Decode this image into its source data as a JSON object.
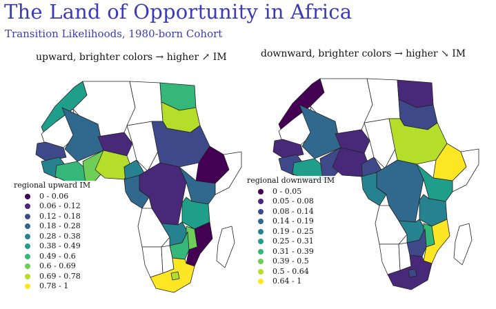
{
  "header": {
    "title": "The Land of Opportunity in Africa",
    "subtitle": "Transition Likelihoods, 1980-born Cohort"
  },
  "maps": {
    "upward": {
      "title": "upward, brighter colors → higher ↗ IM",
      "legend_title": "regional upward IM",
      "legend": [
        {
          "label": "0 - 0.06",
          "color": "#440154"
        },
        {
          "label": "0.06 - 0.12",
          "color": "#482878"
        },
        {
          "label": "0.12 - 0.18",
          "color": "#3e4989"
        },
        {
          "label": "0.18 - 0.28",
          "color": "#31688e"
        },
        {
          "label": "0.28 - 0.38",
          "color": "#26828e"
        },
        {
          "label": "0.38 - 0.49",
          "color": "#1f9e89"
        },
        {
          "label": "0.49 - 0.6",
          "color": "#35b779"
        },
        {
          "label": "0.6 - 0.69",
          "color": "#6ece58"
        },
        {
          "label": "0.69 - 0.78",
          "color": "#b5de2b"
        },
        {
          "label": "0.78 - 1",
          "color": "#fde725"
        }
      ]
    },
    "downward": {
      "title": "downward, brighter colors → higher ↘ IM",
      "legend_title": "regional downward IM",
      "legend": [
        {
          "label": "0 - 0.05",
          "color": "#440154"
        },
        {
          "label": "0.05 - 0.08",
          "color": "#482878"
        },
        {
          "label": "0.08 - 0.14",
          "color": "#3e4989"
        },
        {
          "label": "0.14 - 0.19",
          "color": "#31688e"
        },
        {
          "label": "0.19 - 0.25",
          "color": "#26828e"
        },
        {
          "label": "0.25 - 0.31",
          "color": "#1f9e89"
        },
        {
          "label": "0.31 - 0.39",
          "color": "#35b779"
        },
        {
          "label": "0.39 - 0.5",
          "color": "#6ece58"
        },
        {
          "label": "0.5 - 0.64",
          "color": "#b5de2b"
        },
        {
          "label": "0.64 - 1",
          "color": "#fde725"
        }
      ]
    }
  },
  "regions": {
    "upward": {
      "morocco": "#1f9e89",
      "algeria": "#ffffff",
      "mali": "#31688e",
      "niger": "#482878",
      "mauritania": "#ffffff",
      "senegal": "#3e4989",
      "guinea": "#26828e",
      "west_coast": "#35b779",
      "ghana_togo": "#6ece58",
      "nigeria": "#b5de2b",
      "cameroon": "#26828e",
      "chad": "#ffffff",
      "libya": "#ffffff",
      "egypt": "#b5de2b",
      "egypt_north": "#35b779",
      "sudan": "#3e4989",
      "ethiopia": "#440154",
      "somalia": "#ffffff",
      "drc": "#482878",
      "congo_gabon": "#31688e",
      "uganda_kenya": "#31688e",
      "tanzania": "#1f9e89",
      "angola": "#ffffff",
      "zambia": "#26828e",
      "malawi": "#6ece58",
      "mozambique": "#440154",
      "zimbabwe": "#35b779",
      "namibia": "#ffffff",
      "botswana": "#ffffff",
      "south_africa": "#fde725",
      "lesotho": "#b5de2b",
      "madagascar": "#ffffff"
    },
    "downward": {
      "morocco": "#440154",
      "algeria": "#ffffff",
      "mali": "#31688e",
      "niger": "#482878",
      "mauritania": "#ffffff",
      "senegal": "#482878",
      "guinea": "#3e4989",
      "west_coast": "#1f9e89",
      "ghana_togo": "#3e4989",
      "nigeria": "#482878",
      "cameroon": "#3e4989",
      "chad": "#ffffff",
      "libya": "#ffffff",
      "egypt": "#3e4989",
      "egypt_north": "#482878",
      "sudan": "#b5de2b",
      "ethiopia": "#fde725",
      "somalia": "#ffffff",
      "drc": "#31688e",
      "congo_gabon": "#26828e",
      "uganda_kenya": "#1f9e89",
      "tanzania": "#26828e",
      "angola": "#ffffff",
      "zambia": "#26828e",
      "malawi": "#35b779",
      "mozambique": "#fde725",
      "zimbabwe": "#3e4989",
      "namibia": "#ffffff",
      "botswana": "#ffffff",
      "south_africa": "#482878",
      "lesotho": "#3e4989",
      "madagascar": "#ffffff"
    }
  }
}
